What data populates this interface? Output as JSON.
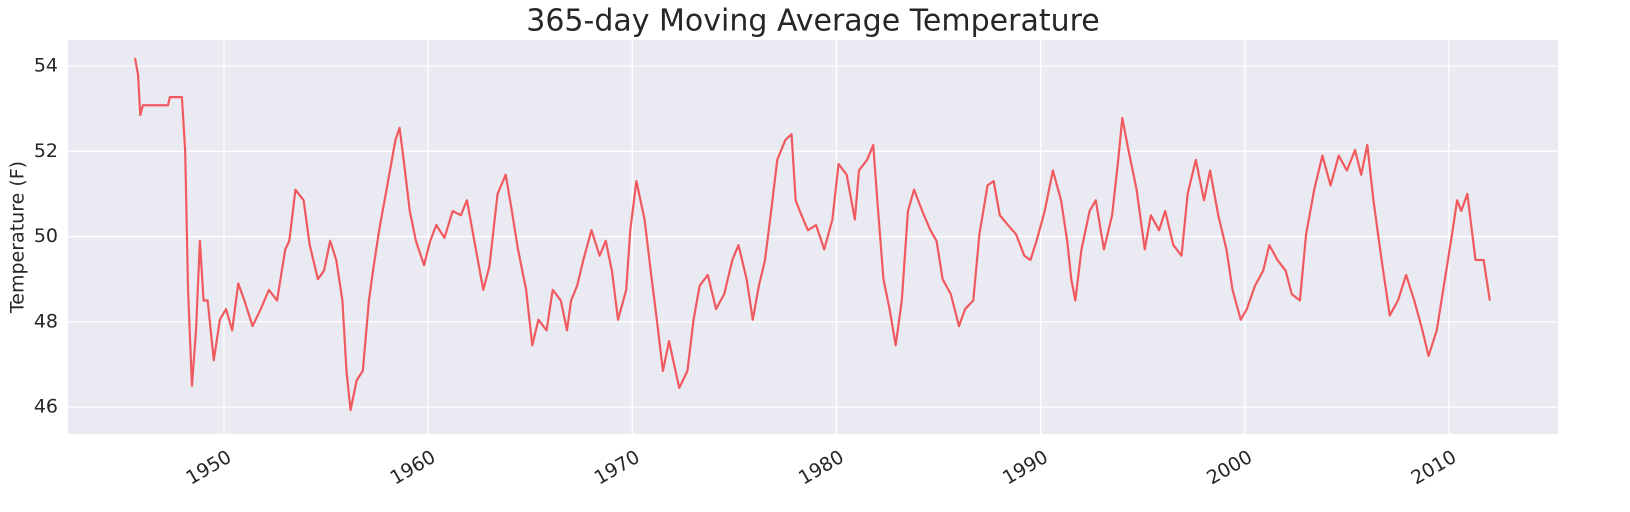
{
  "chart_data": {
    "type": "line",
    "title": "365-day Moving Average Temperature",
    "ylabel": "Temperature (F)",
    "color": "#f05a5f",
    "grid": true,
    "xlim": [
      1942.36,
      2015.34
    ],
    "xticks": [
      1950,
      1960,
      1970,
      1980,
      1990,
      2000,
      2010
    ],
    "ylim": [
      45.37,
      54.61
    ],
    "yticks": [
      46,
      48,
      50,
      52,
      54
    ],
    "x": [
      1945.64,
      1945.79,
      1945.9,
      1946.03,
      1947.26,
      1947.35,
      1947.94,
      1948.1,
      1948.24,
      1948.43,
      1948.63,
      1948.82,
      1949.0,
      1949.2,
      1949.5,
      1949.8,
      1950.1,
      1950.4,
      1950.7,
      1951.0,
      1951.4,
      1951.8,
      1952.2,
      1952.6,
      1953.0,
      1953.2,
      1953.5,
      1953.9,
      1954.2,
      1954.6,
      1954.9,
      1955.2,
      1955.5,
      1955.8,
      1956.0,
      1956.2,
      1956.5,
      1956.8,
      1957.1,
      1957.3,
      1957.6,
      1958.0,
      1958.4,
      1958.6,
      1958.8,
      1959.1,
      1959.4,
      1959.8,
      1960.1,
      1960.4,
      1960.8,
      1961.2,
      1961.6,
      1961.9,
      1962.3,
      1962.7,
      1963.0,
      1963.4,
      1963.8,
      1964.1,
      1964.4,
      1964.8,
      1965.1,
      1965.4,
      1965.8,
      1966.1,
      1966.5,
      1966.8,
      1967.0,
      1967.3,
      1967.6,
      1968.0,
      1968.4,
      1968.7,
      1969.0,
      1969.3,
      1969.7,
      1969.9,
      1970.2,
      1970.6,
      1970.9,
      1971.2,
      1971.5,
      1971.8,
      1972.0,
      1972.3,
      1972.7,
      1973.0,
      1973.3,
      1973.7,
      1974.1,
      1974.5,
      1974.9,
      1975.2,
      1975.6,
      1975.9,
      1976.2,
      1976.5,
      1976.8,
      1977.1,
      1977.5,
      1977.8,
      1978.0,
      1978.2,
      1978.6,
      1979.0,
      1979.4,
      1979.8,
      1980.1,
      1980.5,
      1980.9,
      1981.1,
      1981.5,
      1981.8,
      1982.0,
      1982.3,
      1982.6,
      1982.9,
      1983.2,
      1983.5,
      1983.8,
      1984.2,
      1984.6,
      1984.9,
      1985.2,
      1985.6,
      1986.0,
      1986.3,
      1986.7,
      1987.0,
      1987.4,
      1987.7,
      1988.0,
      1988.4,
      1988.8,
      1989.2,
      1989.5,
      1989.8,
      1990.2,
      1990.6,
      1991.0,
      1991.3,
      1991.5,
      1991.7,
      1992.0,
      1992.4,
      1992.7,
      1993.1,
      1993.5,
      1993.8,
      1994.0,
      1994.3,
      1994.7,
      1995.1,
      1995.4,
      1995.8,
      1996.1,
      1996.5,
      1996.9,
      1997.2,
      1997.6,
      1998.0,
      1998.3,
      1998.7,
      1999.1,
      1999.4,
      1999.8,
      2000.1,
      2000.5,
      2000.9,
      2001.2,
      2001.6,
      2002.0,
      2002.3,
      2002.7,
      2003.0,
      2003.4,
      2003.8,
      2004.2,
      2004.6,
      2005.0,
      2005.4,
      2005.7,
      2006.0,
      2006.3,
      2006.7,
      2007.1,
      2007.5,
      2007.9,
      2008.3,
      2008.7,
      2009.0,
      2009.4,
      2009.8,
      2010.1,
      2010.4,
      2010.6,
      2010.9,
      2011.3,
      2011.7,
      2012.0
    ],
    "values": [
      54.19,
      53.8,
      52.85,
      53.08,
      53.08,
      53.27,
      53.27,
      52.0,
      48.75,
      46.5,
      47.8,
      49.9,
      48.5,
      48.5,
      47.1,
      48.05,
      48.3,
      47.8,
      48.9,
      48.5,
      47.9,
      48.3,
      48.75,
      48.5,
      49.7,
      49.9,
      51.1,
      50.85,
      49.8,
      49.0,
      49.2,
      49.9,
      49.45,
      48.5,
      46.85,
      45.93,
      46.63,
      46.85,
      48.5,
      49.2,
      50.15,
      51.2,
      52.27,
      52.55,
      51.8,
      50.6,
      49.9,
      49.33,
      49.9,
      50.27,
      49.97,
      50.6,
      50.5,
      50.85,
      49.8,
      48.75,
      49.3,
      51.0,
      51.45,
      50.6,
      49.7,
      48.75,
      47.45,
      48.05,
      47.8,
      48.75,
      48.5,
      47.8,
      48.5,
      48.85,
      49.45,
      50.15,
      49.55,
      49.9,
      49.2,
      48.05,
      48.75,
      50.15,
      51.3,
      50.4,
      49.2,
      48.05,
      46.85,
      47.55,
      47.1,
      46.45,
      46.85,
      48.05,
      48.85,
      49.1,
      48.3,
      48.65,
      49.45,
      49.8,
      49.0,
      48.05,
      48.85,
      49.45,
      50.6,
      51.8,
      52.27,
      52.4,
      50.85,
      50.6,
      50.15,
      50.27,
      49.7,
      50.4,
      51.7,
      51.45,
      50.4,
      51.55,
      51.8,
      52.15,
      50.85,
      49.0,
      48.3,
      47.45,
      48.5,
      50.6,
      51.1,
      50.6,
      50.15,
      49.9,
      49.0,
      48.65,
      47.9,
      48.3,
      48.5,
      50.05,
      51.2,
      51.3,
      50.5,
      50.27,
      50.05,
      49.55,
      49.45,
      49.9,
      50.6,
      51.55,
      50.85,
      49.9,
      49.0,
      48.5,
      49.7,
      50.6,
      50.85,
      49.7,
      50.5,
      51.8,
      52.78,
      52.03,
      51.1,
      49.7,
      50.5,
      50.15,
      50.6,
      49.8,
      49.55,
      51.0,
      51.8,
      50.85,
      51.55,
      50.5,
      49.7,
      48.75,
      48.05,
      48.3,
      48.85,
      49.2,
      49.8,
      49.45,
      49.2,
      48.65,
      48.5,
      50.05,
      51.1,
      51.9,
      51.2,
      51.9,
      51.55,
      52.03,
      51.45,
      52.15,
      50.85,
      49.45,
      48.15,
      48.5,
      49.1,
      48.5,
      47.8,
      47.2,
      47.8,
      49.0,
      49.9,
      50.85,
      50.6,
      51.0,
      49.45,
      49.45,
      48.5
    ]
  }
}
